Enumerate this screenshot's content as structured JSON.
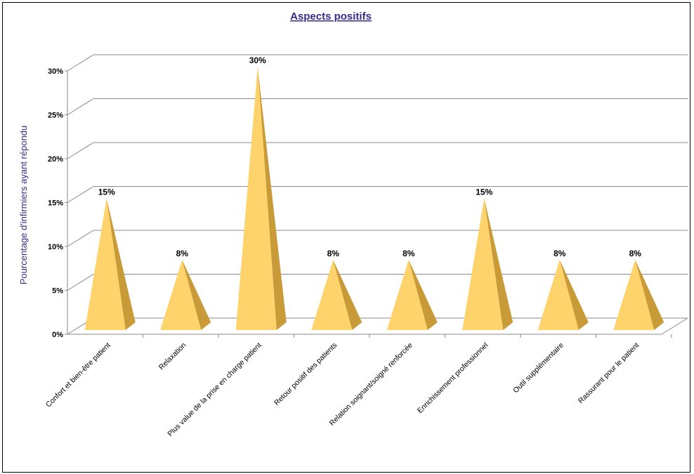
{
  "chart_data": {
    "type": "bar",
    "style": "3d-pyramid",
    "title": "Aspects positifs",
    "ylabel": "Pourcentage d'infirmiers ayant répondu",
    "xlabel": "",
    "ylim": [
      0,
      30
    ],
    "yticks": [
      "0%",
      "5%",
      "10%",
      "15%",
      "20%",
      "25%",
      "30%"
    ],
    "grid": true,
    "categories": [
      "Confort et bien-être patient",
      "Relaxation",
      "Plus value de la prise en charge patient",
      "Retour positif des patients",
      "Relation soignant/soigné renforcée",
      "Enrichissement professionnel",
      "Outil supplémentaire",
      "Rassurant pour le patient"
    ],
    "values": [
      15,
      8,
      30,
      8,
      8,
      15,
      8,
      8
    ],
    "data_labels": [
      "15%",
      "8%",
      "30%",
      "8%",
      "8%",
      "15%",
      "8%",
      "8%"
    ],
    "colors": {
      "front": "#ffd36b",
      "side": "#c99a38",
      "grid": "#8a8a8a",
      "title": "#3b2a8c"
    }
  }
}
